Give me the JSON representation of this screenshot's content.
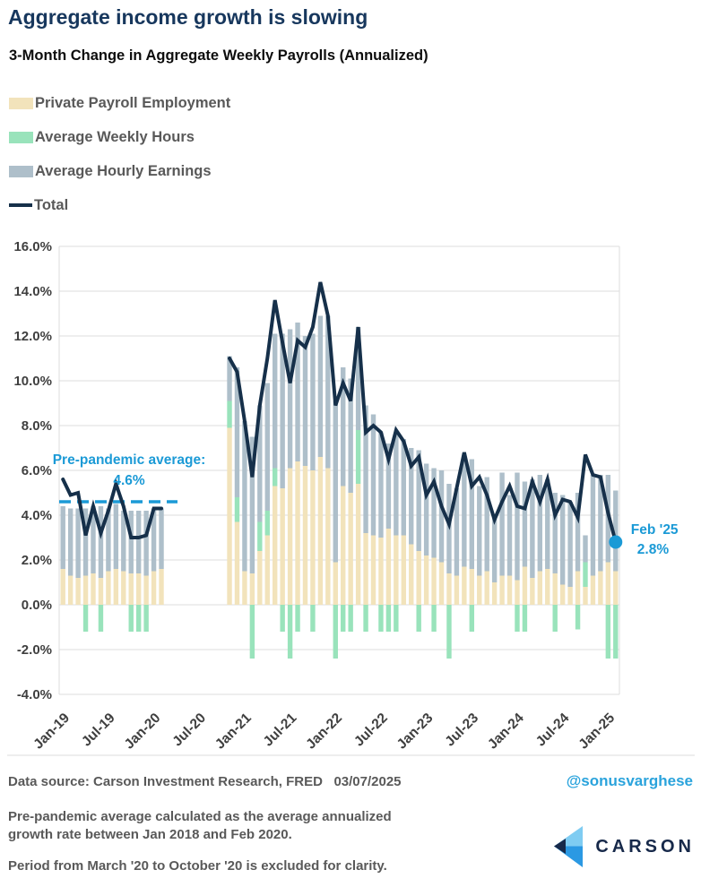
{
  "header": {
    "title": "Aggregate income growth is slowing",
    "subtitle": "3-Month Change in Aggregate Weekly Payrolls (Annualized)"
  },
  "colors": {
    "title_navy": "#17375d",
    "payroll_beige": "#f2e3bb",
    "hours_green": "#99e3bb",
    "earnings_gray": "#aebfca",
    "total_line_navy": "#16304a",
    "accent_blue": "#1b9ad6",
    "handle_blue": "#2aa3dc",
    "grid_gray": "#dcdcdc",
    "axis_text": "#3f3f3f",
    "note_gray": "#595959",
    "logo_light_blue": "#7fccf2",
    "logo_bright_blue": "#2b99e3",
    "logo_navy": "#17294a"
  },
  "chart_data": {
    "type": "bar",
    "stacked": true,
    "overlay_line": "Total",
    "grid": true,
    "ylim": [
      -4,
      16
    ],
    "y_tick_step": 2,
    "y_tick_suffix": "%",
    "legend": [
      {
        "label": "Private Payroll Employment",
        "color": "#f2e3bb",
        "shape": "swatch"
      },
      {
        "label": "Average Weekly Hours",
        "color": "#99e3bb",
        "shape": "swatch"
      },
      {
        "label": "Average Hourly Earnings",
        "color": "#aebfca",
        "shape": "swatch"
      },
      {
        "label": "Total",
        "color": "#16304a",
        "shape": "line"
      }
    ],
    "x_ticks": [
      {
        "slot": 0,
        "label": "Jan-19"
      },
      {
        "slot": 6,
        "label": "Jul-19"
      },
      {
        "slot": 12,
        "label": "Jan-20"
      },
      {
        "slot": 18,
        "label": "Jul-20"
      },
      {
        "slot": 24,
        "label": "Jan-21"
      },
      {
        "slot": 30,
        "label": "Jul-21"
      },
      {
        "slot": 36,
        "label": "Jan-22"
      },
      {
        "slot": 42,
        "label": "Jul-22"
      },
      {
        "slot": 48,
        "label": "Jan-23"
      },
      {
        "slot": 54,
        "label": "Jul-23"
      },
      {
        "slot": 60,
        "label": "Jan-24"
      },
      {
        "slot": 66,
        "label": "Jul-24"
      },
      {
        "slot": 72,
        "label": "Jan-25"
      }
    ],
    "months": [
      {
        "m": "Jan-19",
        "p": 1.6,
        "h": 0,
        "e": 2.8,
        "t": 5.6
      },
      {
        "m": "Feb-19",
        "p": 1.3,
        "h": 0,
        "e": 3.0,
        "t": 4.9
      },
      {
        "m": "Mar-19",
        "p": 1.2,
        "h": 0,
        "e": 3.1,
        "t": 5.0
      },
      {
        "m": "Apr-19",
        "p": 1.3,
        "h": -1.2,
        "e": 3.0,
        "t": 3.1
      },
      {
        "m": "May-19",
        "p": 1.4,
        "h": 0,
        "e": 3.0,
        "t": 4.4
      },
      {
        "m": "Jun-19",
        "p": 1.2,
        "h": -1.2,
        "e": 3.2,
        "t": 3.2
      },
      {
        "m": "Jul-19",
        "p": 1.5,
        "h": 0,
        "e": 2.8,
        "t": 4.2
      },
      {
        "m": "Aug-19",
        "p": 1.6,
        "h": 0,
        "e": 2.9,
        "t": 5.4
      },
      {
        "m": "Sep-19",
        "p": 1.5,
        "h": 0,
        "e": 2.7,
        "t": 4.4
      },
      {
        "m": "Oct-19",
        "p": 1.4,
        "h": -1.2,
        "e": 2.8,
        "t": 3.0
      },
      {
        "m": "Nov-19",
        "p": 1.4,
        "h": -1.2,
        "e": 2.8,
        "t": 3.0
      },
      {
        "m": "Dec-19",
        "p": 1.3,
        "h": -1.2,
        "e": 2.9,
        "t": 3.1
      },
      {
        "m": "Jan-20",
        "p": 1.5,
        "h": 0,
        "e": 2.8,
        "t": 4.3
      },
      {
        "m": "Feb-20",
        "p": 1.6,
        "h": 0,
        "e": 2.7,
        "t": 4.3
      },
      {
        "m": "Mar-20",
        "gap": true
      },
      {
        "m": "Apr-20",
        "gap": true
      },
      {
        "m": "May-20",
        "gap": true
      },
      {
        "m": "Jun-20",
        "gap": true
      },
      {
        "m": "Jul-20",
        "gap": true
      },
      {
        "m": "Aug-20",
        "gap": true
      },
      {
        "m": "Sep-20",
        "gap": true
      },
      {
        "m": "Oct-20",
        "gap": true
      },
      {
        "m": "Nov-20",
        "p": 7.9,
        "h": 1.2,
        "e": 2.0,
        "t": 11.0
      },
      {
        "m": "Dec-20",
        "p": 3.7,
        "h": 1.1,
        "e": 5.8,
        "t": 10.4
      },
      {
        "m": "Jan-21",
        "p": 1.5,
        "h": 0,
        "e": 6.7,
        "t": 8.2
      },
      {
        "m": "Feb-21",
        "p": 1.4,
        "h": -2.4,
        "e": 6.1,
        "t": 5.7
      },
      {
        "m": "Mar-21",
        "p": 2.4,
        "h": 1.3,
        "e": 5.2,
        "t": 8.9
      },
      {
        "m": "Apr-21",
        "p": 3.1,
        "h": 1.1,
        "e": 5.7,
        "t": 11.0
      },
      {
        "m": "May-21",
        "p": 5.3,
        "h": 0.8,
        "e": 6.0,
        "t": 13.6
      },
      {
        "m": "Jun-21",
        "p": 5.2,
        "h": -1.2,
        "e": 6.9,
        "t": 11.7
      },
      {
        "m": "Jul-21",
        "p": 6.1,
        "h": -2.4,
        "e": 6.2,
        "t": 9.9
      },
      {
        "m": "Aug-21",
        "p": 6.4,
        "h": -1.2,
        "e": 6.2,
        "t": 11.8
      },
      {
        "m": "Sep-21",
        "p": 6.2,
        "h": 0,
        "e": 5.8,
        "t": 11.5
      },
      {
        "m": "Oct-21",
        "p": 6.0,
        "h": -1.2,
        "e": 6.1,
        "t": 12.4
      },
      {
        "m": "Nov-21",
        "p": 6.6,
        "h": 0,
        "e": 6.3,
        "t": 14.4
      },
      {
        "m": "Dec-21",
        "p": 6.1,
        "h": 0,
        "e": 6.8,
        "t": 12.9
      },
      {
        "m": "Jan-22",
        "p": 1.9,
        "h": -2.4,
        "e": 7.2,
        "t": 8.9
      },
      {
        "m": "Feb-22",
        "p": 5.3,
        "h": -1.2,
        "e": 5.3,
        "t": 9.9
      },
      {
        "m": "Mar-22",
        "p": 5.0,
        "h": -1.2,
        "e": 5.1,
        "t": 9.1
      },
      {
        "m": "Apr-22",
        "p": 5.4,
        "h": 2.4,
        "e": 4.6,
        "t": 12.4
      },
      {
        "m": "May-22",
        "p": 3.2,
        "h": -1.2,
        "e": 5.7,
        "t": 7.7
      },
      {
        "m": "Jun-22",
        "p": 3.1,
        "h": 0,
        "e": 5.4,
        "t": 8.0
      },
      {
        "m": "Jul-22",
        "p": 3.0,
        "h": -1.2,
        "e": 4.7,
        "t": 7.7
      },
      {
        "m": "Aug-22",
        "p": 3.4,
        "h": -1.2,
        "e": 3.8,
        "t": 6.5
      },
      {
        "m": "Sep-22",
        "p": 3.1,
        "h": -1.2,
        "e": 4.6,
        "t": 7.8
      },
      {
        "m": "Oct-22",
        "p": 3.1,
        "h": 0,
        "e": 4.3,
        "t": 7.3
      },
      {
        "m": "Nov-22",
        "p": 2.7,
        "h": 0,
        "e": 4.3,
        "t": 6.2
      },
      {
        "m": "Dec-22",
        "p": 2.4,
        "h": -1.2,
        "e": 4.5,
        "t": 6.6
      },
      {
        "m": "Jan-23",
        "p": 2.2,
        "h": 0,
        "e": 4.1,
        "t": 4.9
      },
      {
        "m": "Feb-23",
        "p": 2.1,
        "h": -1.2,
        "e": 4.0,
        "t": 5.5
      },
      {
        "m": "Mar-23",
        "p": 1.9,
        "h": 0,
        "e": 4.1,
        "t": 4.4
      },
      {
        "m": "Apr-23",
        "p": 1.4,
        "h": -2.4,
        "e": 4.0,
        "t": 3.6
      },
      {
        "m": "May-23",
        "p": 1.3,
        "h": 0,
        "e": 3.9,
        "t": 5.2
      },
      {
        "m": "Jun-23",
        "p": 1.7,
        "h": 0,
        "e": 4.8,
        "t": 6.8
      },
      {
        "m": "Jul-23",
        "p": 1.6,
        "h": -1.2,
        "e": 4.9,
        "t": 5.3
      },
      {
        "m": "Aug-23",
        "p": 1.3,
        "h": 0,
        "e": 4.0,
        "t": 5.7
      },
      {
        "m": "Sep-23",
        "p": 1.5,
        "h": 0,
        "e": 4.2,
        "t": 4.9
      },
      {
        "m": "Oct-23",
        "p": 1.0,
        "h": 0,
        "e": 3.0,
        "t": 3.8
      },
      {
        "m": "Nov-23",
        "p": 1.3,
        "h": 0,
        "e": 4.6,
        "t": 4.6
      },
      {
        "m": "Dec-23",
        "p": 1.3,
        "h": 0,
        "e": 3.6,
        "t": 5.3
      },
      {
        "m": "Jan-24",
        "p": 1.1,
        "h": -1.2,
        "e": 4.8,
        "t": 4.4
      },
      {
        "m": "Feb-24",
        "p": 1.7,
        "h": -1.2,
        "e": 3.8,
        "t": 4.3
      },
      {
        "m": "Mar-24",
        "p": 1.2,
        "h": 0,
        "e": 4.4,
        "t": 5.5
      },
      {
        "m": "Apr-24",
        "p": 1.5,
        "h": 0,
        "e": 4.3,
        "t": 4.6
      },
      {
        "m": "May-24",
        "p": 1.6,
        "h": 0,
        "e": 4.0,
        "t": 5.6
      },
      {
        "m": "Jun-24",
        "p": 1.4,
        "h": -1.2,
        "e": 3.6,
        "t": 4.0
      },
      {
        "m": "Jul-24",
        "p": 0.9,
        "h": 0,
        "e": 4.0,
        "t": 4.7
      },
      {
        "m": "Aug-24",
        "p": 0.8,
        "h": 0,
        "e": 3.8,
        "t": 4.6
      },
      {
        "m": "Sep-24",
        "p": 1.5,
        "h": -1.1,
        "e": 3.5,
        "t": 3.9
      },
      {
        "m": "Oct-24",
        "p": 0.8,
        "h": 1.1,
        "e": 1.2,
        "t": 6.7
      },
      {
        "m": "Nov-24",
        "p": 1.3,
        "h": 0,
        "e": 4.5,
        "t": 5.8
      },
      {
        "m": "Dec-24",
        "p": 1.5,
        "h": 0,
        "e": 4.3,
        "t": 5.7
      },
      {
        "m": "Jan-25",
        "p": 1.9,
        "h": -2.4,
        "e": 3.9,
        "t": 4.1
      },
      {
        "m": "Feb-25",
        "p": 1.5,
        "h": -2.4,
        "e": 3.6,
        "t": 2.8
      }
    ],
    "annotations": {
      "pre_pandemic": {
        "line1": "Pre-pandemic average:",
        "line2": "4.6%",
        "value": 4.6
      },
      "end_point": {
        "line1": "Feb '25",
        "line2": "2.8%",
        "value": 2.8
      }
    }
  },
  "footer": {
    "source": "Data source: Carson Investment Research, FRED   03/07/2025",
    "handle": "@sonusvarghese",
    "note1": "Pre-pandemic average calculated as the average annualized growth rate between Jan 2018 and Feb 2020.",
    "note2": "Period from March '20 to October '20 is excluded for clarity.",
    "logo_text": "CARSON"
  }
}
